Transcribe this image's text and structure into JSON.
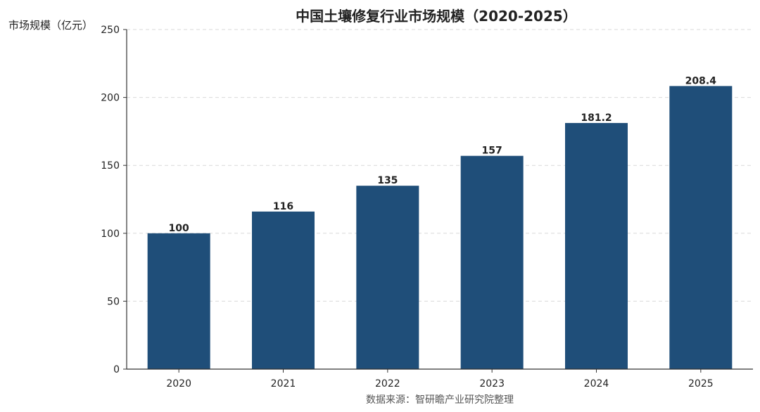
{
  "chart_data": {
    "type": "bar",
    "title": "中国土壤修复行业市场规模（2020-2025）",
    "xlabel": "",
    "ylabel": "市场规模（亿元）",
    "categories": [
      "2020",
      "2021",
      "2022",
      "2023",
      "2024",
      "2025"
    ],
    "values": [
      100,
      116,
      135,
      157,
      181.2,
      208.4
    ],
    "data_labels": [
      "100",
      "116",
      "135",
      "157",
      "181.2",
      "208.4"
    ],
    "ylim": [
      0,
      250
    ],
    "yticks": [
      0,
      50,
      100,
      150,
      200,
      250
    ],
    "grid": "horizontal dashed",
    "legend": "none",
    "bar_color": "#1f4e79",
    "source": "数据来源：智研瞻产业研究院整理"
  }
}
